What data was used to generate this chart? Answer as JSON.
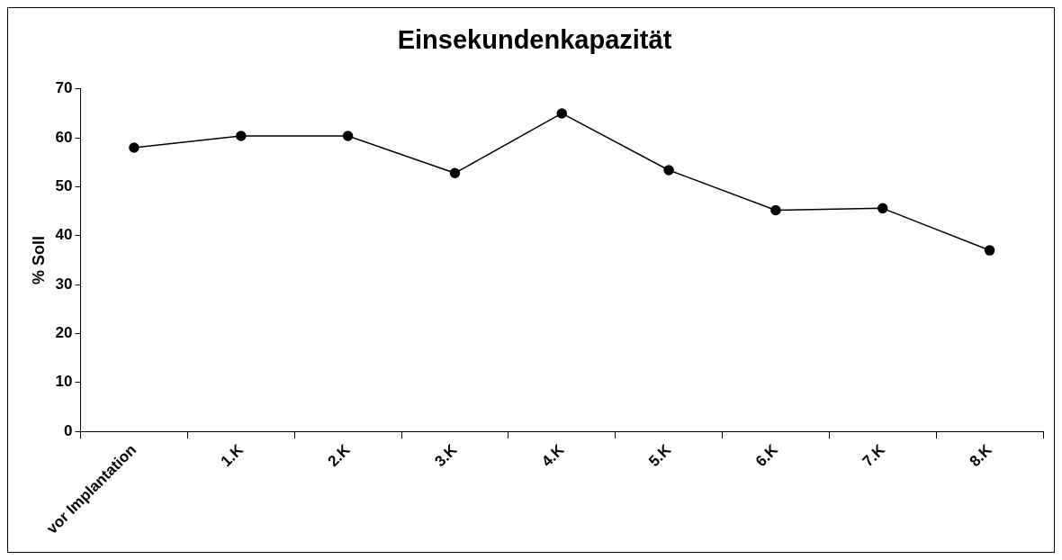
{
  "chart_data": {
    "type": "line",
    "title": "Einsekundenkapazität",
    "ylabel": "% Soll",
    "categories": [
      "vor Implantation",
      "1.K",
      "2.K",
      "3.K",
      "4.K",
      "5.K",
      "6.K",
      "7.K",
      "8.K"
    ],
    "series": [
      {
        "color": "#000000",
        "values": [
          58.0,
          60.4,
          60.4,
          52.8,
          65.0,
          53.4,
          45.2,
          45.6,
          37.0
        ]
      }
    ],
    "ylim": [
      0,
      70
    ],
    "yticks": [
      0,
      10,
      20,
      30,
      40,
      50,
      60,
      70
    ],
    "grid": false,
    "legend": false,
    "marker": "circle",
    "line_style": "solid"
  }
}
